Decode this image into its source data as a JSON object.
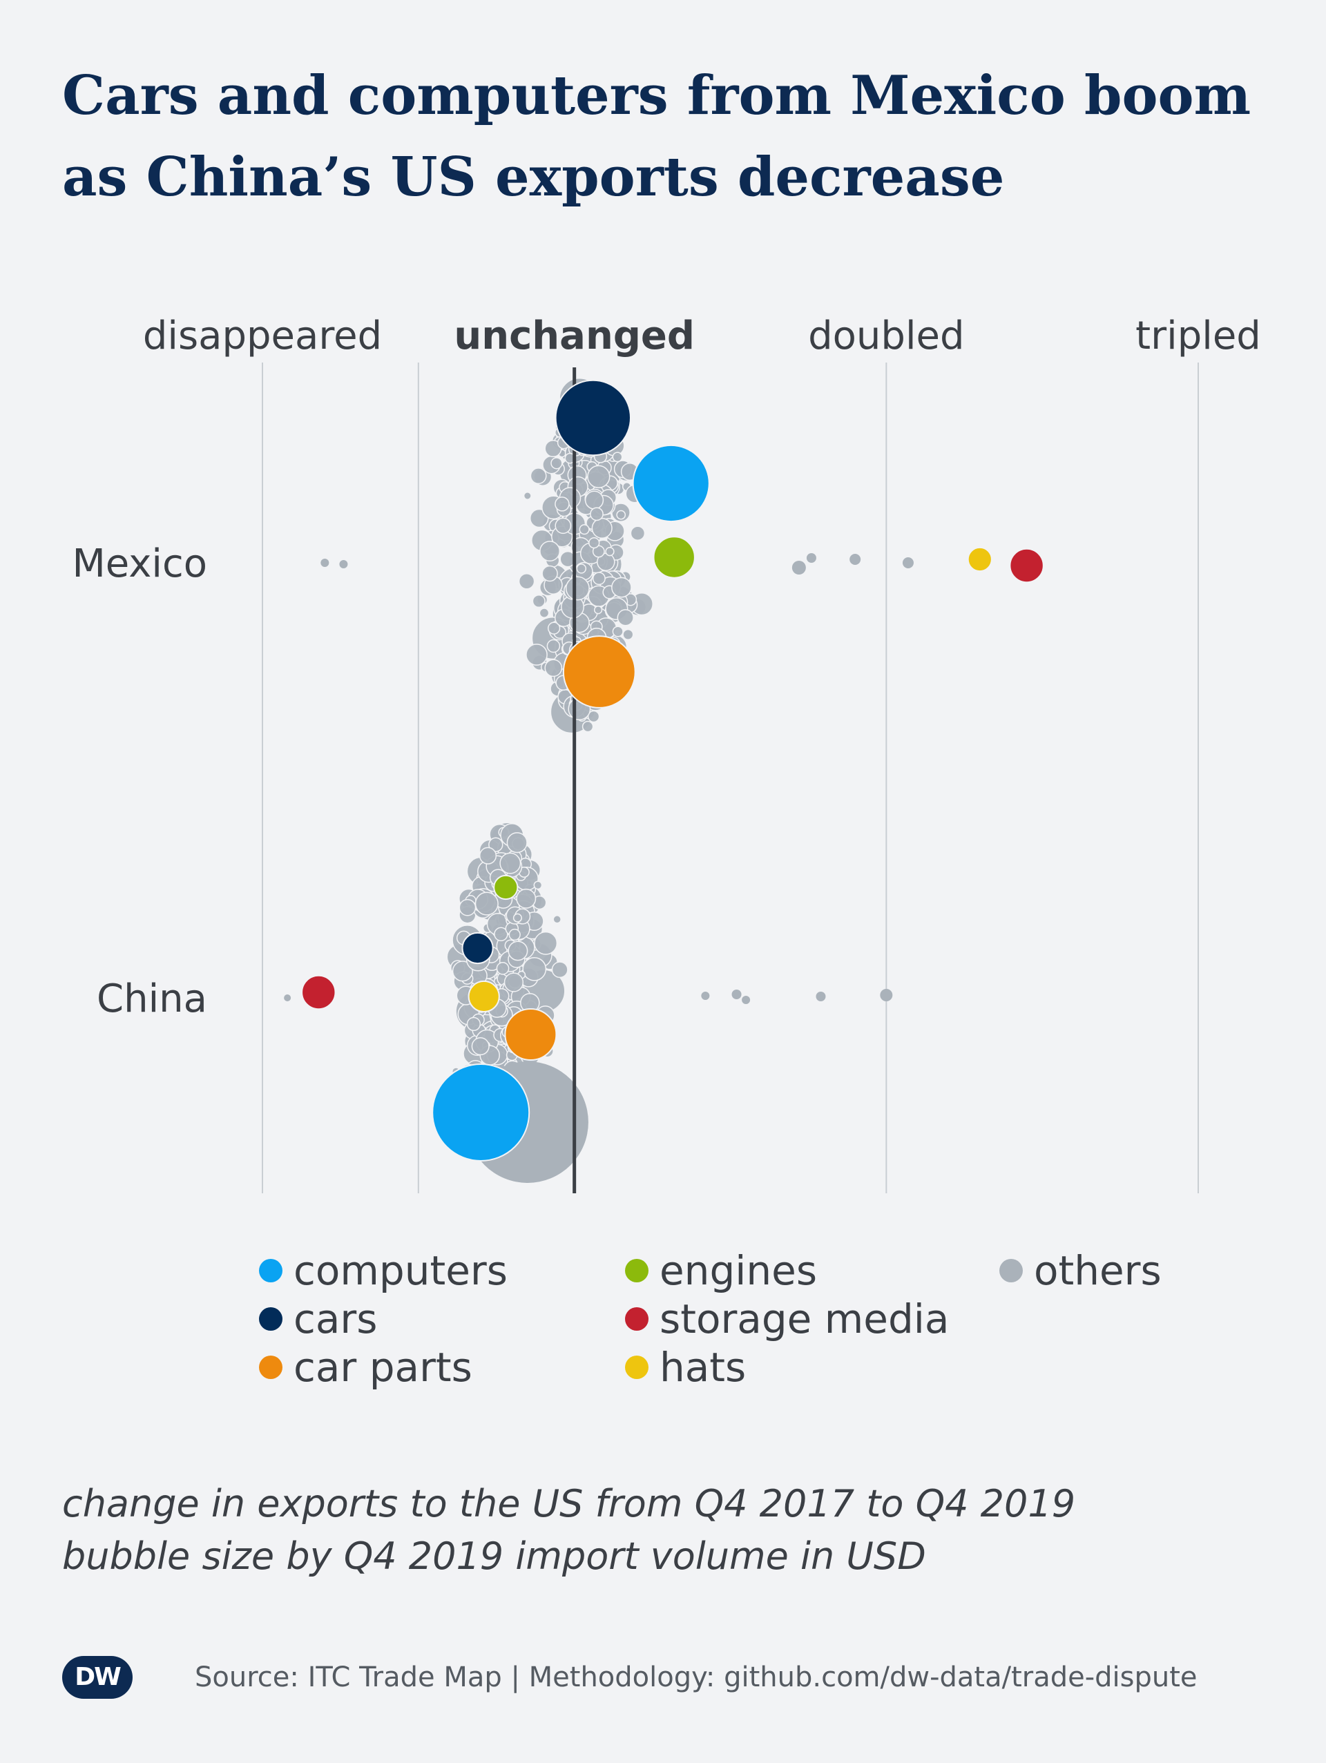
{
  "title_lines": [
    "Cars and computers from Mexico boom",
    "as China’s US exports decrease"
  ],
  "note_lines": [
    "change in exports to the US from Q4 2017 to Q4 2019",
    "bubble size by Q4 2019 import volume in USD"
  ],
  "source": "Source: ITC Trade Map | Methodology: github.com/dw-data/trade-dispute",
  "logo": "DW",
  "chart_data": {
    "type": "scatter",
    "subtype": "beeswarm",
    "x_scale": "ratio of Q4 2019 exports to Q4 2017 exports",
    "xlim": [
      0,
      3
    ],
    "x_ticks": [
      {
        "value": 0,
        "label": "disappeared",
        "bold": false
      },
      {
        "value": 1,
        "label": "unchanged",
        "bold": true
      },
      {
        "value": 2,
        "label": "doubled",
        "bold": false
      },
      {
        "value": 3,
        "label": "tripled",
        "bold": false
      }
    ],
    "extra_gridline": 0.5,
    "grid": true,
    "categories": [
      "Mexico",
      "China"
    ],
    "colors": {
      "computers": "#0aa3f2",
      "cars": "#022c59",
      "car parts": "#ee8a0e",
      "engines": "#8cba0c",
      "storage media": "#c3212f",
      "hats": "#eec50f",
      "others": "#aab2ba"
    },
    "legend": {
      "position": "bottom",
      "entries": [
        "computers",
        "cars",
        "car parts",
        "engines",
        "storage media",
        "hats",
        "others"
      ]
    },
    "series": [
      {
        "name": "computers",
        "points": [
          {
            "country": "Mexico",
            "x": 1.31,
            "size": 0.62
          },
          {
            "country": "China",
            "x": 0.7,
            "size": 1.0
          }
        ]
      },
      {
        "name": "cars",
        "points": [
          {
            "country": "Mexico",
            "x": 1.06,
            "size": 0.6
          },
          {
            "country": "China",
            "x": 0.69,
            "size": 0.1
          }
        ]
      },
      {
        "name": "car parts",
        "points": [
          {
            "country": "Mexico",
            "x": 1.08,
            "size": 0.55
          },
          {
            "country": "China",
            "x": 0.86,
            "size": 0.28
          }
        ]
      },
      {
        "name": "engines",
        "points": [
          {
            "country": "Mexico",
            "x": 1.32,
            "size": 0.18
          },
          {
            "country": "China",
            "x": 0.78,
            "size": 0.06
          }
        ]
      },
      {
        "name": "storage media",
        "points": [
          {
            "country": "Mexico",
            "x": 2.45,
            "size": 0.12
          },
          {
            "country": "China",
            "x": 0.18,
            "size": 0.12
          }
        ]
      },
      {
        "name": "hats",
        "points": [
          {
            "country": "Mexico",
            "x": 2.3,
            "size": 0.06
          },
          {
            "country": "China",
            "x": 0.71,
            "size": 0.1
          }
        ]
      }
    ],
    "others_note": "hundreds of other product categories drawn as grey bubbles around each country"
  }
}
